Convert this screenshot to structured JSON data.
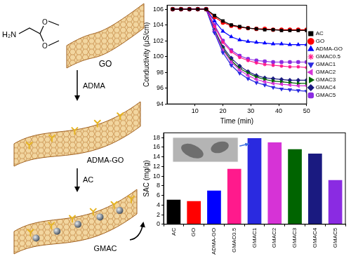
{
  "chart_data": [
    {
      "type": "line",
      "x_label": "Time (min)",
      "y_label": "Conductivity (μS/cm)",
      "x": [
        2,
        5,
        8,
        11,
        14,
        17,
        20,
        23,
        26,
        29,
        32,
        35,
        38,
        41,
        44,
        47,
        50
      ],
      "series": [
        {
          "name": "AC",
          "color": "#000000",
          "marker": "square",
          "values": [
            106,
            106,
            106,
            106,
            106,
            105.2,
            104.5,
            104.0,
            103.8,
            103.6,
            103.5,
            103.4,
            103.4,
            103.3,
            103.3,
            103.3,
            103.3
          ]
        },
        {
          "name": "GO",
          "color": "#ff0000",
          "marker": "circle",
          "values": [
            106,
            106,
            106,
            106,
            106,
            105.0,
            104.3,
            103.9,
            103.7,
            103.6,
            103.5,
            103.5,
            103.4,
            103.4,
            103.4,
            103.4,
            103.4
          ]
        },
        {
          "name": "ADMA-GO",
          "color": "#0000ff",
          "marker": "triangle_up",
          "values": [
            106,
            106,
            106,
            106,
            106,
            104.5,
            103.2,
            102.5,
            102.1,
            101.9,
            101.8,
            101.7,
            101.6,
            101.6,
            101.5,
            101.5,
            101.5
          ]
        },
        {
          "name": "GMAC0.5",
          "color": "#ff1a8c",
          "marker": "star",
          "values": [
            106,
            106,
            106,
            106,
            106,
            103.8,
            101.8,
            100.6,
            99.9,
            99.5,
            99.2,
            99.0,
            98.9,
            98.8,
            98.7,
            98.7,
            98.6
          ]
        },
        {
          "name": "GMAC1",
          "color": "#2a2ae0",
          "marker": "triangle_down",
          "values": [
            106,
            106,
            106,
            106,
            106,
            103.0,
            100.5,
            98.9,
            97.9,
            97.2,
            96.7,
            96.4,
            96.1,
            95.9,
            95.8,
            95.7,
            95.6
          ]
        },
        {
          "name": "GMAC2",
          "color": "#d633d6",
          "marker": "triangle_left",
          "values": [
            106,
            106,
            106,
            106,
            106,
            103.2,
            100.8,
            99.3,
            98.3,
            97.6,
            97.1,
            96.8,
            96.6,
            96.5,
            96.4,
            96.3,
            96.3
          ]
        },
        {
          "name": "GMAC3",
          "color": "#006400",
          "marker": "triangle_right",
          "values": [
            106,
            106,
            106,
            106,
            106,
            103.3,
            101.0,
            99.5,
            98.5,
            97.9,
            97.4,
            97.1,
            96.9,
            96.8,
            96.7,
            96.6,
            96.6
          ]
        },
        {
          "name": "GMAC4",
          "color": "#1a1a80",
          "marker": "diamond",
          "values": [
            106,
            106,
            106,
            106,
            106,
            103.4,
            101.2,
            99.8,
            98.8,
            98.1,
            97.6,
            97.3,
            97.2,
            97.1,
            97.0,
            97.0,
            97.0
          ]
        },
        {
          "name": "GMAC5",
          "color": "#8a2be2",
          "marker": "rounded_square",
          "values": [
            106,
            106,
            106,
            106,
            106,
            104.0,
            102.0,
            100.8,
            100.1,
            99.7,
            99.5,
            99.4,
            99.3,
            99.3,
            99.3,
            99.3,
            99.3
          ]
        }
      ],
      "xlim": [
        0,
        50
      ],
      "xticks": [
        10,
        20,
        30,
        40,
        50
      ],
      "ylim": [
        94,
        106.5
      ],
      "yticks": [
        94,
        96,
        98,
        100,
        102,
        104,
        106
      ],
      "grid": false,
      "legend": "right"
    },
    {
      "type": "bar",
      "y_label": "SAC (mg/g)",
      "categories": [
        "AC",
        "GO",
        "ADMA-GO",
        "GMAC0.5",
        "GMAC1",
        "GMAC2",
        "GMAC3",
        "GMAC4",
        "GMAC5"
      ],
      "values": [
        5.1,
        4.8,
        7.0,
        11.5,
        17.9,
        17.0,
        15.6,
        14.7,
        9.2
      ],
      "colors": [
        "#000000",
        "#ff0000",
        "#0000ff",
        "#ff1a8c",
        "#2a2ae0",
        "#d633d6",
        "#006400",
        "#1a1a80",
        "#8a2be2"
      ],
      "ylim": [
        0,
        19
      ],
      "yticks": [
        0,
        2,
        4,
        6,
        8,
        10,
        12,
        14,
        16,
        18
      ],
      "grid": false
    }
  ],
  "diagram": {
    "sheets": [
      "GO",
      "ADMA-GO",
      "GMAC"
    ],
    "reagents": [
      "ADMA",
      "AC"
    ],
    "molecule": {
      "amine": "H₂N",
      "oxygens": [
        "O",
        "O"
      ]
    }
  }
}
